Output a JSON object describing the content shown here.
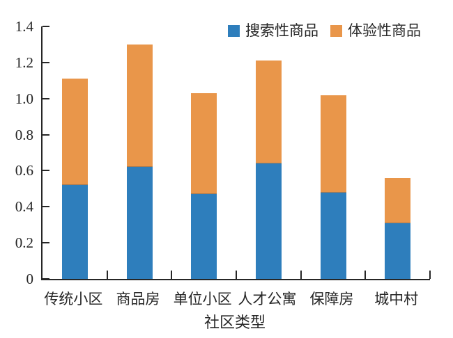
{
  "figure": {
    "background": "#ffffff",
    "text_color": "#262626",
    "axis_color": "#262626"
  },
  "chart_data": {
    "type": "bar",
    "stacked": true,
    "title": "",
    "xlabel": "社区类型",
    "ylabel": "",
    "categories": [
      "传统小区",
      "商品房",
      "单位小区",
      "人才公寓",
      "保障房",
      "城中村"
    ],
    "series": [
      {
        "name": "搜索性商品",
        "color": "#2E7EBC",
        "values": [
          0.52,
          0.62,
          0.47,
          0.64,
          0.48,
          0.31
        ]
      },
      {
        "name": "体验性商品",
        "color": "#E9964A",
        "values": [
          0.59,
          0.68,
          0.56,
          0.57,
          0.54,
          0.25
        ]
      }
    ],
    "stack_totals": [
      1.11,
      1.3,
      1.03,
      1.21,
      1.02,
      0.56
    ],
    "ylim": [
      0,
      1.4
    ],
    "yticks": [
      0,
      0.2,
      0.4,
      0.6,
      0.8,
      1.0,
      1.2,
      1.4
    ],
    "ytick_labels": [
      "0",
      "0.2",
      "0.4",
      "0.6",
      "0.8",
      "1.0",
      "1.2",
      "1.4"
    ],
    "grid": false,
    "legend_position": "top-right"
  }
}
